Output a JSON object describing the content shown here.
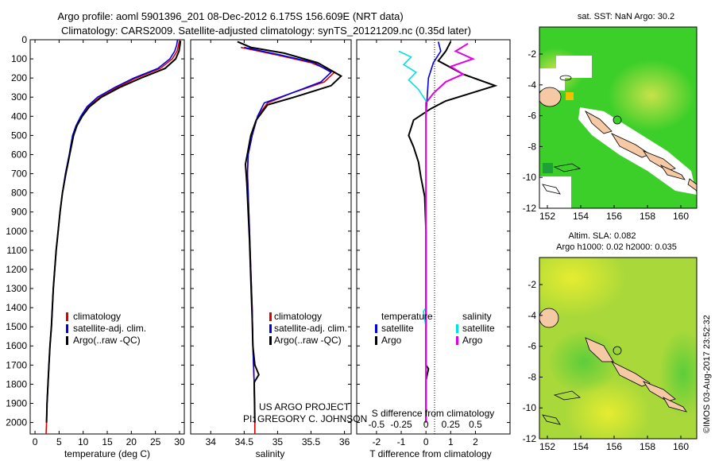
{
  "header": {
    "title_line1": "Argo profile: aoml 5901396_201 08-Dec-2012 6.175S 156.609E (NRT data)",
    "title_line2": "Climatology: CARS2009. Satellite-adjusted climatology: synTS_20121209.nc (0.35d later)"
  },
  "colors": {
    "climatology": "#e00000",
    "satellite": "#0000e0",
    "argo": "#000000",
    "argo_salinity": "#e000e0",
    "satellite_salinity": "#00e0e0",
    "ocean_green": "#3ccf2a",
    "land": "#f5c9a4"
  },
  "chart_data": [
    {
      "type": "line",
      "panel": "temperature",
      "xlabel": "temperature (deg C)",
      "xlim": [
        -1,
        31
      ],
      "xticks": [
        0,
        5,
        10,
        15,
        20,
        25,
        30
      ],
      "ylim": [
        0,
        2060
      ],
      "yticks": [
        0,
        100,
        200,
        300,
        400,
        500,
        600,
        700,
        800,
        900,
        1000,
        1100,
        1200,
        1300,
        1400,
        1500,
        1600,
        1700,
        1800,
        1900,
        2000
      ],
      "legend": [
        "climatology",
        "satellite-adj. clim.",
        "Argo(..raw -QC)"
      ],
      "series": [
        {
          "name": "climatology",
          "points": [
            [
              30.0,
              0
            ],
            [
              29.8,
              30
            ],
            [
              29.5,
              60
            ],
            [
              28.5,
              100
            ],
            [
              26,
              150
            ],
            [
              21,
              200
            ],
            [
              17,
              250
            ],
            [
              13.5,
              300
            ],
            [
              11,
              350
            ],
            [
              9.6,
              400
            ],
            [
              8.6,
              450
            ],
            [
              7.9,
              500
            ],
            [
              7.2,
              600
            ],
            [
              6.4,
              700
            ],
            [
              5.7,
              800
            ],
            [
              5.2,
              900
            ],
            [
              4.8,
              1000
            ],
            [
              4.4,
              1100
            ],
            [
              4.1,
              1200
            ],
            [
              3.8,
              1300
            ],
            [
              3.6,
              1400
            ],
            [
              3.4,
              1500
            ],
            [
              3.1,
              1600
            ],
            [
              2.9,
              1700
            ],
            [
              2.7,
              1800
            ],
            [
              2.5,
              1900
            ],
            [
              2.4,
              2000
            ],
            [
              2.3,
              2060
            ]
          ]
        },
        {
          "name": "satellite-adj. clim.",
          "points": [
            [
              29.6,
              0
            ],
            [
              29.4,
              30
            ],
            [
              29.0,
              60
            ],
            [
              28.0,
              100
            ],
            [
              25.5,
              150
            ],
            [
              20.5,
              200
            ],
            [
              16.5,
              250
            ],
            [
              13.0,
              300
            ],
            [
              10.8,
              350
            ],
            [
              9.5,
              400
            ],
            [
              8.5,
              450
            ],
            [
              7.8,
              500
            ],
            [
              7.1,
              600
            ],
            [
              6.3,
              700
            ],
            [
              5.7,
              800
            ],
            [
              5.2,
              900
            ],
            [
              4.8,
              1000
            ],
            [
              4.4,
              1100
            ],
            [
              4.1,
              1200
            ],
            [
              3.8,
              1300
            ],
            [
              3.6,
              1400
            ],
            [
              3.4,
              1500
            ],
            [
              3.1,
              1600
            ],
            [
              2.9,
              1700
            ],
            [
              2.7,
              1800
            ],
            [
              2.5,
              1900
            ],
            [
              2.4,
              2000
            ]
          ]
        },
        {
          "name": "Argo(..raw -QC)",
          "points": [
            [
              30.2,
              5
            ],
            [
              30.1,
              30
            ],
            [
              29.9,
              60
            ],
            [
              29.2,
              100
            ],
            [
              27,
              150
            ],
            [
              22,
              200
            ],
            [
              17.5,
              250
            ],
            [
              13.8,
              300
            ],
            [
              11.3,
              350
            ],
            [
              9.8,
              400
            ],
            [
              8.7,
              450
            ],
            [
              8.0,
              500
            ],
            [
              7.2,
              600
            ],
            [
              6.4,
              700
            ],
            [
              5.7,
              800
            ],
            [
              5.2,
              900
            ],
            [
              4.8,
              1000
            ],
            [
              4.4,
              1100
            ],
            [
              4.1,
              1200
            ],
            [
              3.8,
              1300
            ],
            [
              3.6,
              1400
            ],
            [
              3.4,
              1500
            ],
            [
              3.1,
              1600
            ],
            [
              2.9,
              1700
            ],
            [
              2.7,
              1800
            ],
            [
              2.5,
              1900
            ],
            [
              2.4,
              2000
            ]
          ]
        }
      ]
    },
    {
      "type": "line",
      "panel": "salinity",
      "xlabel": "salinity",
      "xlim": [
        33.7,
        36.1
      ],
      "xticks": [
        34,
        34.5,
        35,
        35.5,
        36
      ],
      "xtick_labels": [
        "34",
        "34.5",
        "35",
        "35.5",
        "36"
      ],
      "ylim": [
        0,
        2060
      ],
      "legend": [
        "climatology",
        "satellite-adj. clim.",
        "Argo(..raw -QC)"
      ],
      "annotations": [
        "US ARGO PROJECT",
        "PI: GREGORY C. JOHNSON"
      ],
      "series": [
        {
          "name": "climatology",
          "points": [
            [
              34.45,
              40
            ],
            [
              35.0,
              80
            ],
            [
              35.5,
              120
            ],
            [
              35.85,
              170
            ],
            [
              35.7,
              220
            ],
            [
              35.2,
              280
            ],
            [
              34.85,
              330
            ],
            [
              34.7,
              400
            ],
            [
              34.62,
              500
            ],
            [
              34.56,
              600
            ],
            [
              34.55,
              700
            ],
            [
              34.56,
              800
            ],
            [
              34.57,
              900
            ],
            [
              34.58,
              1000
            ],
            [
              34.6,
              1200
            ],
            [
              34.62,
              1400
            ],
            [
              34.63,
              1600
            ],
            [
              34.65,
              1800
            ],
            [
              34.66,
              2000
            ],
            [
              34.66,
              2060
            ]
          ]
        },
        {
          "name": "satellite-adj. clim.",
          "points": [
            [
              34.5,
              40
            ],
            [
              35.05,
              80
            ],
            [
              35.55,
              120
            ],
            [
              35.8,
              170
            ],
            [
              35.65,
              220
            ],
            [
              35.2,
              280
            ],
            [
              34.8,
              330
            ],
            [
              34.7,
              400
            ],
            [
              34.62,
              500
            ],
            [
              34.56,
              600
            ],
            [
              34.55,
              700
            ],
            [
              34.56,
              800
            ],
            [
              34.57,
              900
            ],
            [
              34.58,
              1000
            ],
            [
              34.6,
              1200
            ],
            [
              34.62,
              1400
            ],
            [
              34.63,
              1600
            ],
            [
              34.65,
              1800
            ],
            [
              34.66,
              2000
            ]
          ]
        },
        {
          "name": "Argo(..raw -QC)",
          "points": [
            [
              34.4,
              10
            ],
            [
              34.6,
              40
            ],
            [
              35.1,
              70
            ],
            [
              35.6,
              120
            ],
            [
              35.95,
              190
            ],
            [
              35.8,
              240
            ],
            [
              35.25,
              300
            ],
            [
              34.85,
              340
            ],
            [
              34.68,
              420
            ],
            [
              34.6,
              500
            ],
            [
              34.52,
              650
            ],
            [
              34.54,
              750
            ],
            [
              34.56,
              900
            ],
            [
              34.58,
              1050
            ],
            [
              34.6,
              1250
            ],
            [
              34.62,
              1450
            ],
            [
              34.63,
              1600
            ],
            [
              34.66,
              1700
            ],
            [
              34.72,
              1750
            ],
            [
              34.65,
              1790
            ],
            [
              34.66,
              2000
            ]
          ]
        }
      ]
    },
    {
      "type": "line",
      "panel": "difference",
      "xlabel_top": "S difference from climatology",
      "xlabel_bottom": "T difference from climatology",
      "xlim": [
        -2.8,
        3.4
      ],
      "xticks": [
        -2,
        -1,
        0,
        1,
        2
      ],
      "s_tick_labels": [
        "-0.5",
        "-0.25",
        "0",
        "0.25",
        "0.5"
      ],
      "ylim": [
        0,
        2060
      ],
      "legend_temperature": {
        "title": "temperature",
        "items": [
          "satellite",
          "Argo"
        ]
      },
      "legend_salinity": {
        "title": "salinity",
        "items": [
          "satellite",
          "Argo"
        ]
      },
      "series": [
        {
          "name": "T satellite",
          "points": [
            [
              0.5,
              10
            ],
            [
              0.6,
              60
            ],
            [
              0.3,
              120
            ],
            [
              0.1,
              200
            ],
            [
              0.05,
              300
            ],
            [
              0,
              400
            ],
            [
              0,
              600
            ],
            [
              0,
              1000
            ],
            [
              0,
              1500
            ],
            [
              0,
              2000
            ]
          ]
        },
        {
          "name": "T Argo",
          "points": [
            [
              1.0,
              10
            ],
            [
              0.8,
              60
            ],
            [
              0.5,
              110
            ],
            [
              1.5,
              180
            ],
            [
              2.8,
              240
            ],
            [
              1.8,
              280
            ],
            [
              0.8,
              320
            ],
            [
              0.2,
              360
            ],
            [
              -0.5,
              420
            ],
            [
              -0.7,
              500
            ],
            [
              -0.5,
              560
            ],
            [
              -0.3,
              640
            ],
            [
              -0.2,
              720
            ],
            [
              -0.05,
              820
            ],
            [
              0,
              1000
            ],
            [
              0,
              1400
            ],
            [
              0,
              1700
            ],
            [
              0.1,
              1720
            ],
            [
              0,
              1780
            ],
            [
              0,
              2000
            ]
          ]
        },
        {
          "name": "S satellite",
          "points": [
            [
              -1.1,
              60
            ],
            [
              -0.6,
              90
            ],
            [
              -0.9,
              130
            ],
            [
              -0.4,
              170
            ],
            [
              -0.7,
              210
            ],
            [
              -0.3,
              260
            ],
            [
              0,
              320
            ],
            [
              0,
              1000
            ],
            [
              0,
              1400
            ],
            [
              -0.1,
              1420
            ],
            [
              0,
              1500
            ],
            [
              0,
              2000
            ]
          ]
        },
        {
          "name": "S Argo",
          "points": [
            [
              1.7,
              20
            ],
            [
              1.2,
              60
            ],
            [
              1.9,
              100
            ],
            [
              1.0,
              140
            ],
            [
              1.5,
              180
            ],
            [
              0.8,
              220
            ],
            [
              0.3,
              280
            ],
            [
              0,
              330
            ],
            [
              0,
              1000
            ],
            [
              0,
              2000
            ]
          ]
        }
      ]
    },
    {
      "type": "heatmap",
      "panel": "sst_map",
      "title": "sat. SST: NaN Argo: 30.2",
      "xticks": [
        "152",
        "154",
        "156",
        "158",
        "160"
      ],
      "yticks": [
        "-2",
        "-4",
        "-6",
        "-8",
        "-10",
        "-12"
      ],
      "marker": {
        "lon": 156.609,
        "lat": -6.175
      }
    },
    {
      "type": "heatmap",
      "panel": "sla_map",
      "title_line1": "Altim. SLA: 0.082",
      "title_line2": "Argo h1000: 0.02 h2000: 0.035",
      "xticks": [
        "152",
        "154",
        "156",
        "158",
        "160"
      ],
      "yticks": [
        "-2",
        "-4",
        "-6",
        "-8",
        "-10",
        "-12"
      ],
      "marker": {
        "lon": 156.609,
        "lat": -6.175
      }
    }
  ],
  "footer": {
    "stamp": "©IMOS 03-Aug-2017 23:52:32"
  }
}
